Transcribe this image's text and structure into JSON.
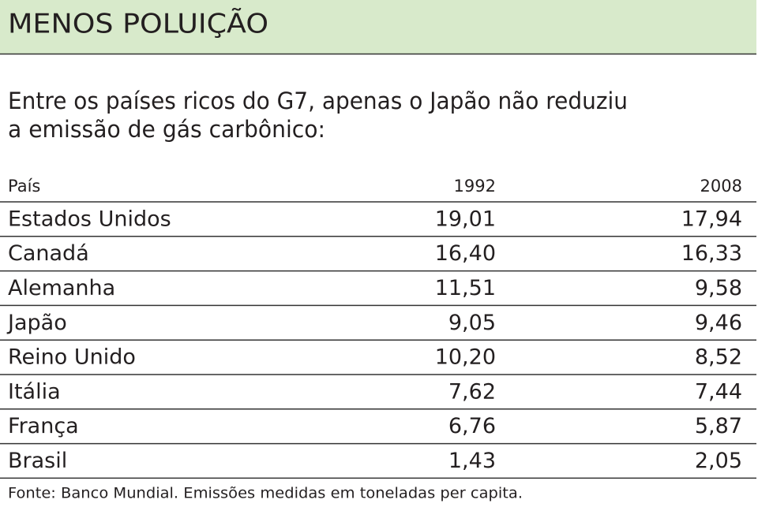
{
  "header": {
    "title": "MENOS POLUIÇÃO"
  },
  "subtitle": [
    "Entre os países ricos do G7, apenas o Japão não reduziu",
    "a emissão de gás carbônico:"
  ],
  "table": {
    "columns": [
      "País",
      "1992",
      "2008"
    ],
    "rows": [
      [
        "Estados Unidos",
        "19,01",
        "17,94"
      ],
      [
        "Canadá",
        "16,40",
        "16,33"
      ],
      [
        "Alemanha",
        "11,51",
        "9,58"
      ],
      [
        "Japão",
        "9,05",
        "9,46"
      ],
      [
        "Reino Unido",
        "10,20",
        "8,52"
      ],
      [
        "Itália",
        "7,62",
        "7,44"
      ],
      [
        "França",
        "6,76",
        "5,87"
      ],
      [
        "Brasil",
        "1,43",
        "2,05"
      ]
    ]
  },
  "footer": "Fonte: Banco Mundial. Emissões medidas em toneladas per capita."
}
